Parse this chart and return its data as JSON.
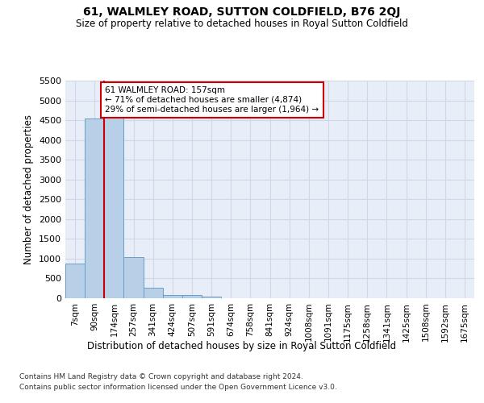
{
  "title": "61, WALMLEY ROAD, SUTTON COLDFIELD, B76 2QJ",
  "subtitle": "Size of property relative to detached houses in Royal Sutton Coldfield",
  "xlabel": "Distribution of detached houses by size in Royal Sutton Coldfield",
  "ylabel": "Number of detached properties",
  "footer_line1": "Contains HM Land Registry data © Crown copyright and database right 2024.",
  "footer_line2": "Contains public sector information licensed under the Open Government Licence v3.0.",
  "bin_labels": [
    "7sqm",
    "90sqm",
    "174sqm",
    "257sqm",
    "341sqm",
    "424sqm",
    "507sqm",
    "591sqm",
    "674sqm",
    "758sqm",
    "841sqm",
    "924sqm",
    "1008sqm",
    "1091sqm",
    "1175sqm",
    "1258sqm",
    "1341sqm",
    "1425sqm",
    "1508sqm",
    "1592sqm",
    "1675sqm"
  ],
  "bin_values": [
    880,
    4540,
    4590,
    1040,
    270,
    85,
    75,
    50,
    0,
    0,
    0,
    0,
    0,
    0,
    0,
    0,
    0,
    0,
    0,
    0,
    0
  ],
  "bar_color": "#b8cfe8",
  "bar_edgecolor": "#6b9ec8",
  "grid_color": "#d0d8e8",
  "background_color": "#e8eef8",
  "annotation_text": "61 WALMLEY ROAD: 157sqm\n← 71% of detached houses are smaller (4,874)\n29% of semi-detached houses are larger (1,964) →",
  "annotation_box_edgecolor": "#cc0000",
  "subject_line_color": "#cc0000",
  "ylim": [
    0,
    5500
  ],
  "yticks": [
    0,
    500,
    1000,
    1500,
    2000,
    2500,
    3000,
    3500,
    4000,
    4500,
    5000,
    5500
  ]
}
